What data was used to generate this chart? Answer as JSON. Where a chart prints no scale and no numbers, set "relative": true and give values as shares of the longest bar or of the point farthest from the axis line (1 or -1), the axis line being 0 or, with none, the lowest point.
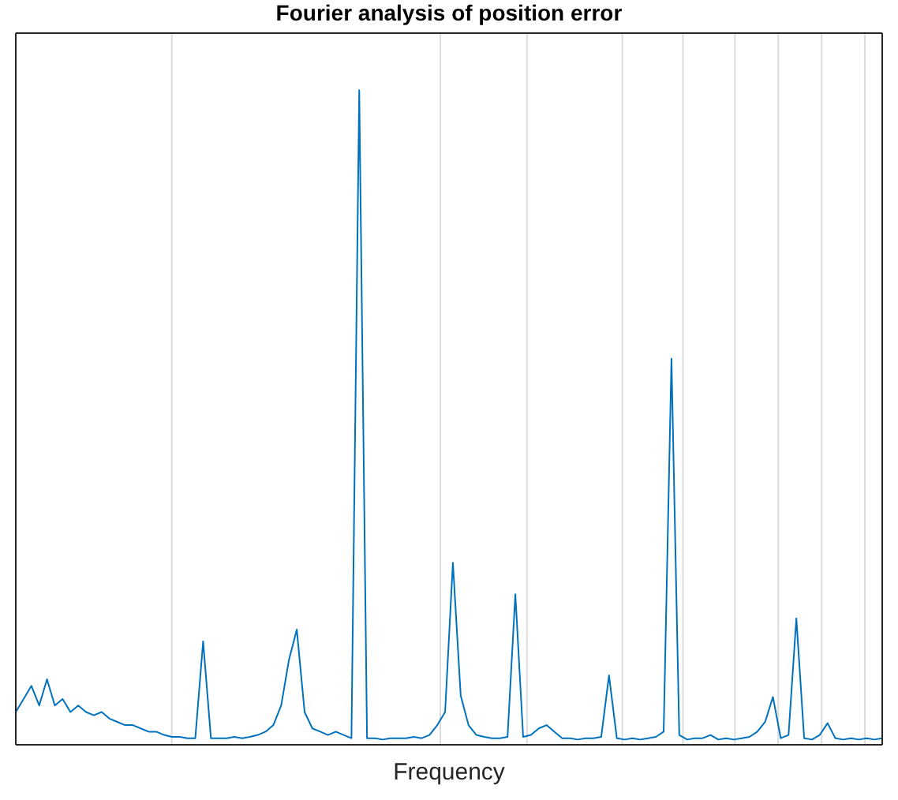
{
  "chart_data": {
    "type": "line",
    "title": "Fourier analysis of position error",
    "xlabel": "Frequency",
    "relative": true,
    "grid": true,
    "marker": "none",
    "categories": [
      null,
      null,
      null,
      null,
      null,
      null,
      null,
      null,
      null,
      null,
      null,
      null,
      null,
      null,
      null,
      null,
      null,
      null,
      null,
      null,
      null,
      null,
      null,
      null,
      null,
      null,
      null,
      null,
      null,
      null,
      null,
      null,
      null,
      null,
      null,
      null,
      null,
      null,
      null,
      null,
      null,
      null,
      null,
      null,
      null,
      null,
      null,
      null,
      null,
      null,
      null,
      null,
      null,
      null,
      null,
      null,
      null,
      null,
      null,
      null,
      null,
      null,
      null,
      null,
      null,
      null,
      null,
      null,
      null,
      null,
      null,
      null,
      null,
      null,
      null,
      null,
      null,
      null,
      null,
      null,
      null,
      null,
      null,
      null,
      null,
      null,
      null,
      null,
      null,
      null,
      null,
      null,
      null,
      null,
      null,
      null,
      null,
      null,
      null,
      null,
      null,
      null,
      null,
      null,
      null,
      null,
      null,
      null,
      null,
      null,
      null,
      null
    ],
    "series": [
      {
        "color": "#0072bd",
        "values": [
          0.05,
          0.07,
          0.09,
          0.06,
          0.1,
          0.06,
          0.07,
          0.05,
          0.06,
          0.05,
          0.045,
          0.05,
          0.04,
          0.035,
          0.03,
          0.03,
          0.025,
          0.02,
          0.02,
          0.015,
          0.012,
          0.012,
          0.01,
          0.01,
          0.158,
          0.01,
          0.01,
          0.01,
          0.012,
          0.01,
          0.012,
          0.015,
          0.02,
          0.03,
          0.06,
          0.13,
          0.176,
          0.05,
          0.025,
          0.02,
          0.015,
          0.02,
          0.015,
          0.01,
          1,
          0.01,
          0.01,
          0.008,
          0.01,
          0.01,
          0.01,
          0.012,
          0.01,
          0.015,
          0.03,
          0.05,
          0.278,
          0.075,
          0.03,
          0.015,
          0.012,
          0.01,
          0.01,
          0.012,
          0.23,
          0.012,
          0.015,
          0.025,
          0.03,
          0.02,
          0.01,
          0.01,
          0.008,
          0.01,
          0.01,
          0.012,
          0.106,
          0.01,
          0.008,
          0.01,
          0.008,
          0.01,
          0.012,
          0.02,
          0.59,
          0.015,
          0.008,
          0.01,
          0.01,
          0.015,
          0.008,
          0.01,
          0.008,
          0.01,
          0.012,
          0.02,
          0.035,
          0.073,
          0.01,
          0.015,
          0.193,
          0.01,
          0.008,
          0.015,
          0.033,
          0.01,
          0.008,
          0.01,
          0.008,
          0.01,
          0.008,
          0.01
        ]
      }
    ]
  }
}
